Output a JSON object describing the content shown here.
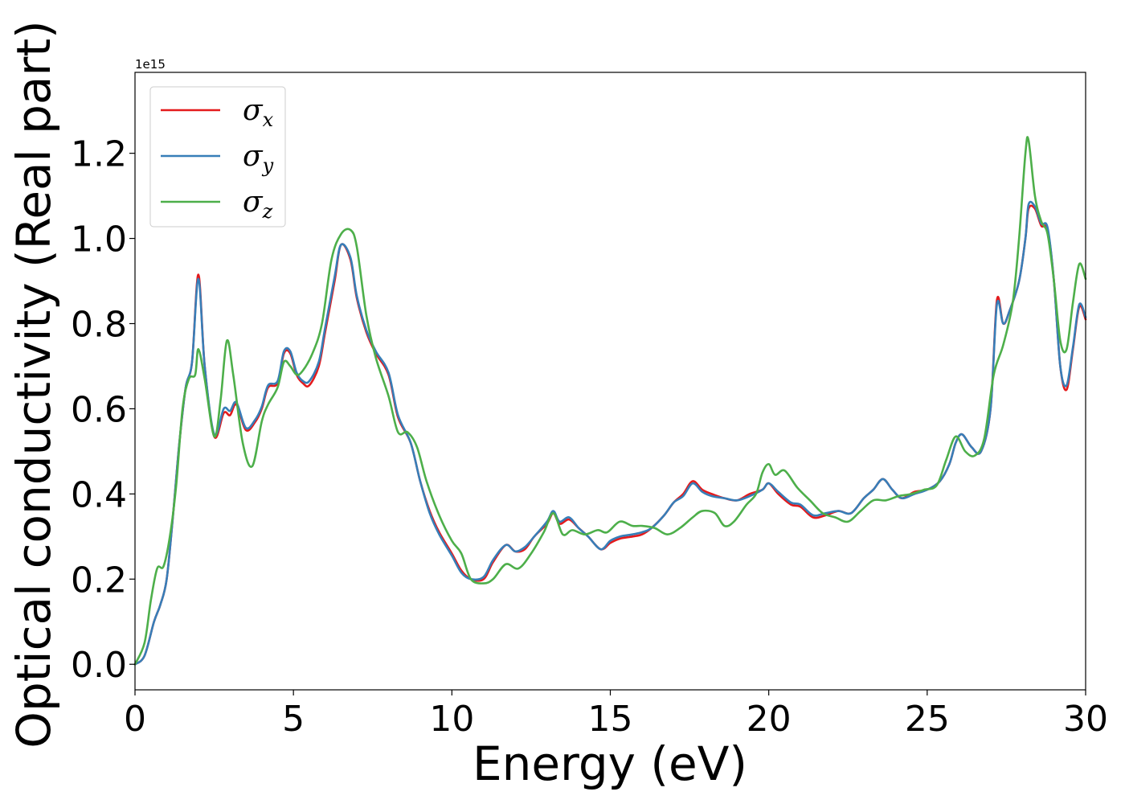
{
  "chart_data": {
    "type": "line",
    "title": "",
    "xlabel": "Energy (eV)",
    "ylabel": "Optical conductivity (Real part)",
    "y_offset_label": "1e15",
    "xlim": [
      0,
      30
    ],
    "ylim": [
      -0.06,
      1.39
    ],
    "xticks": [
      0,
      5,
      10,
      15,
      20,
      25,
      30
    ],
    "yticks": [
      0.0,
      0.2,
      0.4,
      0.6,
      0.8,
      1.0,
      1.2
    ],
    "xtick_labels": [
      "0",
      "5",
      "10",
      "15",
      "20",
      "25",
      "30"
    ],
    "ytick_labels": [
      "0.0",
      "0.2",
      "0.4",
      "0.6",
      "0.8",
      "1.0",
      "1.2"
    ],
    "grid": false,
    "legend_position": "upper-left",
    "series": [
      {
        "name": "σx",
        "symbol": "σ",
        "subscript": "x",
        "color": "#e41a1c",
        "x": [
          0,
          0.3,
          0.6,
          0.8,
          1.0,
          1.2,
          1.4,
          1.6,
          1.8,
          2.0,
          2.2,
          2.5,
          2.8,
          3.0,
          3.2,
          3.5,
          3.8,
          4.0,
          4.2,
          4.5,
          4.7,
          4.9,
          5.1,
          5.3,
          5.5,
          5.8,
          6.0,
          6.3,
          6.5,
          6.8,
          7.0,
          7.3,
          7.6,
          8.0,
          8.3,
          8.7,
          9.0,
          9.3,
          9.6,
          10.0,
          10.3,
          10.6,
          11.0,
          11.3,
          11.7,
          12.0,
          12.3,
          12.6,
          13.0,
          13.2,
          13.4,
          13.7,
          14.0,
          14.3,
          14.7,
          15.0,
          15.3,
          15.7,
          16.0,
          16.3,
          16.7,
          17.0,
          17.3,
          17.6,
          17.9,
          18.2,
          18.6,
          19.0,
          19.4,
          19.8,
          20.0,
          20.3,
          20.7,
          21.0,
          21.4,
          21.8,
          22.2,
          22.6,
          23.0,
          23.3,
          23.6,
          23.9,
          24.2,
          24.6,
          25.0,
          25.4,
          25.7,
          25.9,
          26.1,
          26.4,
          26.7,
          27.0,
          27.2,
          27.4,
          27.6,
          27.9,
          28.1,
          28.2,
          28.4,
          28.6,
          28.8,
          29.0,
          29.2,
          29.4,
          29.6,
          29.8,
          30.0
        ],
        "y": [
          0.0,
          0.02,
          0.1,
          0.14,
          0.2,
          0.35,
          0.52,
          0.65,
          0.71,
          0.915,
          0.7,
          0.535,
          0.59,
          0.585,
          0.61,
          0.55,
          0.57,
          0.6,
          0.65,
          0.66,
          0.73,
          0.73,
          0.68,
          0.66,
          0.655,
          0.7,
          0.78,
          0.9,
          0.985,
          0.95,
          0.86,
          0.78,
          0.73,
          0.68,
          0.58,
          0.52,
          0.43,
          0.36,
          0.31,
          0.26,
          0.22,
          0.2,
          0.2,
          0.24,
          0.28,
          0.265,
          0.27,
          0.3,
          0.33,
          0.355,
          0.33,
          0.34,
          0.32,
          0.3,
          0.27,
          0.285,
          0.295,
          0.3,
          0.305,
          0.32,
          0.35,
          0.38,
          0.4,
          0.43,
          0.41,
          0.4,
          0.39,
          0.385,
          0.4,
          0.41,
          0.425,
          0.4,
          0.375,
          0.37,
          0.345,
          0.35,
          0.36,
          0.355,
          0.39,
          0.41,
          0.435,
          0.41,
          0.39,
          0.405,
          0.41,
          0.43,
          0.47,
          0.52,
          0.54,
          0.51,
          0.5,
          0.6,
          0.855,
          0.8,
          0.83,
          0.9,
          1.0,
          1.07,
          1.07,
          1.03,
          1.02,
          0.9,
          0.7,
          0.645,
          0.74,
          0.84,
          0.81
        ]
      },
      {
        "name": "σy",
        "symbol": "σ",
        "subscript": "y",
        "color": "#377eb8",
        "x": [
          0,
          0.3,
          0.6,
          0.8,
          1.0,
          1.2,
          1.4,
          1.6,
          1.8,
          2.0,
          2.2,
          2.5,
          2.8,
          3.0,
          3.2,
          3.5,
          3.8,
          4.0,
          4.2,
          4.5,
          4.7,
          4.9,
          5.1,
          5.3,
          5.5,
          5.8,
          6.0,
          6.3,
          6.5,
          6.8,
          7.0,
          7.3,
          7.6,
          8.0,
          8.3,
          8.7,
          9.0,
          9.3,
          9.6,
          10.0,
          10.3,
          10.6,
          11.0,
          11.3,
          11.7,
          12.0,
          12.3,
          12.6,
          13.0,
          13.2,
          13.4,
          13.7,
          14.0,
          14.3,
          14.7,
          15.0,
          15.3,
          15.7,
          16.0,
          16.3,
          16.7,
          17.0,
          17.3,
          17.6,
          17.9,
          18.2,
          18.6,
          19.0,
          19.4,
          19.8,
          20.0,
          20.3,
          20.7,
          21.0,
          21.4,
          21.8,
          22.2,
          22.6,
          23.0,
          23.3,
          23.6,
          23.9,
          24.2,
          24.6,
          25.0,
          25.4,
          25.7,
          25.9,
          26.1,
          26.4,
          26.7,
          27.0,
          27.2,
          27.4,
          27.6,
          27.9,
          28.1,
          28.2,
          28.4,
          28.6,
          28.8,
          29.0,
          29.2,
          29.4,
          29.6,
          29.8,
          30.0
        ],
        "y": [
          0.0,
          0.02,
          0.1,
          0.14,
          0.2,
          0.35,
          0.52,
          0.65,
          0.71,
          0.905,
          0.7,
          0.54,
          0.6,
          0.595,
          0.615,
          0.555,
          0.575,
          0.605,
          0.655,
          0.665,
          0.735,
          0.735,
          0.685,
          0.665,
          0.665,
          0.71,
          0.79,
          0.91,
          0.985,
          0.955,
          0.865,
          0.785,
          0.735,
          0.685,
          0.585,
          0.52,
          0.43,
          0.355,
          0.305,
          0.255,
          0.215,
          0.2,
          0.205,
          0.245,
          0.28,
          0.265,
          0.275,
          0.3,
          0.335,
          0.36,
          0.335,
          0.345,
          0.32,
          0.3,
          0.27,
          0.29,
          0.3,
          0.305,
          0.31,
          0.32,
          0.35,
          0.38,
          0.395,
          0.425,
          0.405,
          0.395,
          0.39,
          0.385,
          0.395,
          0.41,
          0.425,
          0.405,
          0.38,
          0.375,
          0.35,
          0.355,
          0.36,
          0.355,
          0.39,
          0.41,
          0.435,
          0.41,
          0.39,
          0.4,
          0.41,
          0.43,
          0.47,
          0.52,
          0.54,
          0.51,
          0.5,
          0.6,
          0.845,
          0.8,
          0.83,
          0.9,
          1.0,
          1.08,
          1.075,
          1.035,
          1.025,
          0.9,
          0.7,
          0.655,
          0.745,
          0.845,
          0.815
        ]
      },
      {
        "name": "σz",
        "symbol": "σ",
        "subscript": "z",
        "color": "#4daf4a",
        "x": [
          0,
          0.3,
          0.5,
          0.7,
          0.9,
          1.1,
          1.3,
          1.5,
          1.7,
          1.9,
          2.0,
          2.2,
          2.5,
          2.7,
          2.9,
          3.1,
          3.4,
          3.7,
          4.0,
          4.2,
          4.5,
          4.7,
          4.9,
          5.1,
          5.3,
          5.6,
          5.9,
          6.2,
          6.5,
          6.8,
          7.0,
          7.3,
          7.6,
          8.0,
          8.3,
          8.6,
          8.9,
          9.2,
          9.6,
          10.0,
          10.3,
          10.6,
          11.0,
          11.3,
          11.7,
          12.1,
          12.5,
          12.9,
          13.2,
          13.5,
          13.8,
          14.2,
          14.6,
          14.9,
          15.3,
          15.7,
          16.0,
          16.4,
          16.8,
          17.2,
          17.6,
          17.9,
          18.3,
          18.6,
          18.9,
          19.3,
          19.6,
          19.8,
          20.0,
          20.2,
          20.5,
          20.9,
          21.3,
          21.7,
          22.1,
          22.5,
          22.9,
          23.3,
          23.7,
          24.1,
          24.5,
          24.9,
          25.3,
          25.6,
          25.9,
          26.2,
          26.5,
          26.8,
          27.1,
          27.4,
          27.7,
          27.9,
          28.1,
          28.2,
          28.4,
          28.6,
          28.8,
          29.0,
          29.2,
          29.4,
          29.6,
          29.8,
          30.0
        ],
        "y": [
          0.0,
          0.05,
          0.15,
          0.225,
          0.23,
          0.3,
          0.42,
          0.6,
          0.67,
          0.68,
          0.74,
          0.67,
          0.535,
          0.62,
          0.76,
          0.68,
          0.52,
          0.465,
          0.57,
          0.61,
          0.65,
          0.71,
          0.7,
          0.68,
          0.69,
          0.73,
          0.8,
          0.95,
          1.01,
          1.02,
          0.98,
          0.82,
          0.72,
          0.63,
          0.545,
          0.545,
          0.51,
          0.43,
          0.35,
          0.29,
          0.26,
          0.2,
          0.19,
          0.2,
          0.235,
          0.225,
          0.26,
          0.31,
          0.355,
          0.305,
          0.315,
          0.305,
          0.315,
          0.31,
          0.335,
          0.325,
          0.325,
          0.32,
          0.305,
          0.32,
          0.345,
          0.36,
          0.355,
          0.325,
          0.335,
          0.375,
          0.4,
          0.45,
          0.47,
          0.445,
          0.455,
          0.415,
          0.385,
          0.355,
          0.345,
          0.335,
          0.36,
          0.385,
          0.385,
          0.395,
          0.4,
          0.41,
          0.42,
          0.48,
          0.535,
          0.5,
          0.49,
          0.53,
          0.68,
          0.75,
          0.85,
          1.0,
          1.2,
          1.23,
          1.1,
          1.04,
          1.01,
          0.9,
          0.76,
          0.74,
          0.85,
          0.94,
          0.905
        ]
      }
    ]
  }
}
